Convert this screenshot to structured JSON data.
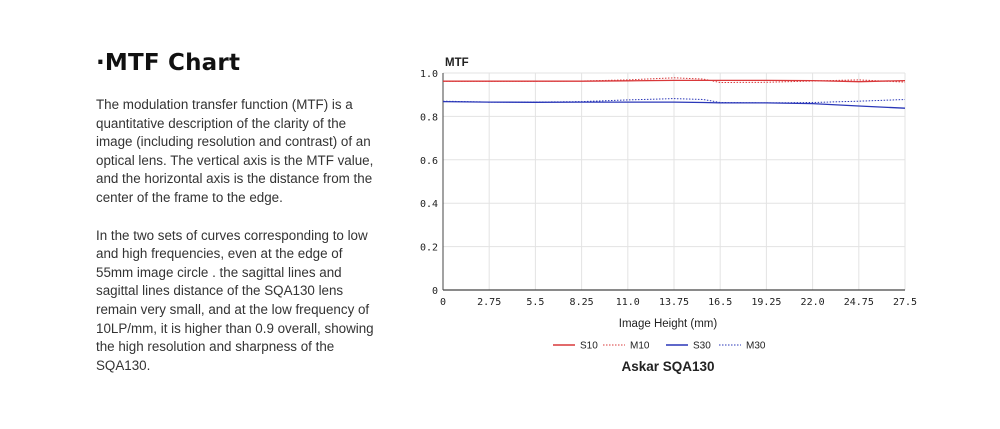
{
  "section": {
    "heading": "·MTF Chart",
    "paragraph1": "The modulation transfer function (MTF) is a quantitative description of the clarity of the image (including resolution and contrast) of an optical lens. The vertical axis is the MTF value, and the horizontal axis is the distance from the center of the frame to the edge.",
    "paragraph2": "In the two sets of curves corresponding to low and high frequencies, even at the edge of 55mm image circle . the sagittal lines and sagittal lines distance of the SQA130 lens remain very small, and at the low frequency of 10LP/mm, it is higher than 0.9 overall, showing the high resolution and sharpness of the SQA130."
  },
  "chart_data": {
    "type": "line",
    "title": "Askar SQA130",
    "xlabel": "Image Height (mm)",
    "ylabel": "MTF",
    "xlim": [
      0,
      27.5
    ],
    "ylim": [
      0,
      1.0
    ],
    "xticks": [
      "0",
      "2.75",
      "5.5",
      "8.25",
      "11.0",
      "13.75",
      "16.5",
      "19.25",
      "22.0",
      "24.75",
      "27.5"
    ],
    "yticks": [
      "0",
      "0.2",
      "0.4",
      "0.6",
      "0.8",
      "1.0"
    ],
    "grid": true,
    "legend_position": "bottom",
    "x": [
      0,
      2.75,
      5.5,
      8.25,
      11.0,
      13.75,
      15.5,
      16.5,
      19.25,
      22.0,
      24.75,
      27.5
    ],
    "series": [
      {
        "name": "S10",
        "color": "#d9383a",
        "dash": "solid",
        "values": [
          0.962,
          0.962,
          0.962,
          0.962,
          0.964,
          0.966,
          0.966,
          0.966,
          0.966,
          0.965,
          0.96,
          0.965
        ]
      },
      {
        "name": "M10",
        "color": "#d9383a",
        "dash": "dotted",
        "values": [
          0.962,
          0.962,
          0.962,
          0.963,
          0.968,
          0.978,
          0.972,
          0.956,
          0.957,
          0.963,
          0.968,
          0.958
        ]
      },
      {
        "name": "S30",
        "color": "#2a37b8",
        "dash": "solid",
        "values": [
          0.868,
          0.866,
          0.865,
          0.866,
          0.866,
          0.866,
          0.864,
          0.862,
          0.862,
          0.859,
          0.848,
          0.838
        ]
      },
      {
        "name": "M30",
        "color": "#2a37b8",
        "dash": "dotted",
        "values": [
          0.87,
          0.866,
          0.866,
          0.868,
          0.876,
          0.882,
          0.878,
          0.864,
          0.862,
          0.864,
          0.87,
          0.878
        ]
      }
    ]
  }
}
